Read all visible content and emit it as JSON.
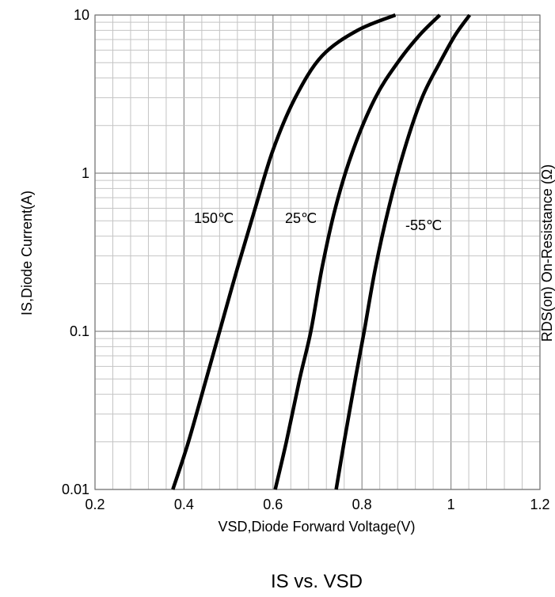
{
  "chart_data": {
    "type": "line",
    "caption": "IS vs. VSD",
    "xlabel": "VSD,Diode Forward Voltage(V)",
    "ylabel": "IS,Diode Current(A)",
    "right_axis_label": "RDS(on) On-Resistance (Ω)",
    "xlim": [
      0.2,
      1.2
    ],
    "ylim": [
      0.01,
      10
    ],
    "y_scale": "log",
    "grid": true,
    "x_ticks": [
      "0.2",
      "0.4",
      "0.6",
      "0.8",
      "1",
      "1.2"
    ],
    "y_ticks": [
      "0.01",
      "0.1",
      "1",
      "10"
    ],
    "series": [
      {
        "name": "150℃",
        "x": [
          0.375,
          0.41,
          0.45,
          0.48,
          0.52,
          0.56,
          0.6,
          0.65,
          0.71,
          0.79,
          0.875
        ],
        "y": [
          0.01,
          0.02,
          0.05,
          0.1,
          0.25,
          0.6,
          1.4,
          3.0,
          5.5,
          8.0,
          10
        ]
      },
      {
        "name": "25℃",
        "x": [
          0.605,
          0.63,
          0.66,
          0.685,
          0.71,
          0.74,
          0.78,
          0.83,
          0.88,
          0.93,
          0.975
        ],
        "y": [
          0.01,
          0.02,
          0.05,
          0.1,
          0.25,
          0.6,
          1.4,
          3.0,
          5.0,
          7.5,
          10
        ]
      },
      {
        "name": "-55℃",
        "x": [
          0.742,
          0.76,
          0.785,
          0.805,
          0.83,
          0.86,
          0.895,
          0.935,
          0.975,
          1.01,
          1.042
        ],
        "y": [
          0.01,
          0.02,
          0.05,
          0.1,
          0.25,
          0.6,
          1.4,
          3.0,
          5.0,
          7.5,
          10
        ]
      }
    ]
  }
}
